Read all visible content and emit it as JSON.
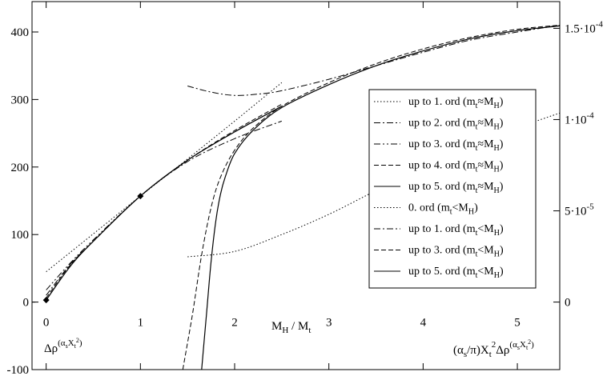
{
  "chart_data": {
    "type": "line",
    "x_axis": {
      "label_main": "M",
      "label_sub": "H",
      "label_rest": " / M",
      "label_sub2": "t",
      "range": [
        -0.15,
        5.45
      ],
      "ticks": [
        0,
        1,
        2,
        3,
        4,
        5
      ],
      "tick_labels": [
        "0",
        "1",
        "2",
        "3",
        "4",
        "5"
      ]
    },
    "y_left": {
      "label_main": "Δρ",
      "label_sup": "(α",
      "label_sup_sub": "s",
      "label_sup_rest": "X",
      "label_sup_sub2": "t",
      "label_sup_sup": "2",
      "label_sup_close": ")",
      "range": [
        -100,
        445
      ],
      "ticks": [
        -100,
        0,
        100,
        200,
        300,
        400
      ],
      "tick_labels": [
        "-100",
        "0",
        "100",
        "200",
        "300",
        "400"
      ]
    },
    "y_right": {
      "label": "(α_s/π)X_t^2 Δρ^(α_s X_t^2)",
      "label_parts": [
        "(α",
        "s",
        "/π)X",
        "t",
        "2",
        "Δρ",
        "(α",
        "s",
        "X",
        "t",
        "2",
        ")"
      ],
      "scale_note": "right axis value = left value × 3.7e-7 (approx)",
      "ticks_left_units": [
        0,
        135.1,
        270.3,
        405.4
      ],
      "tick_labels": [
        "0",
        "5·10",
        "1·10",
        "1.5·10"
      ],
      "tick_exponents": [
        "",
        "-5",
        "-4",
        "-4"
      ]
    },
    "markers": [
      {
        "x": 0,
        "y": 3
      },
      {
        "x": 1,
        "y": 157
      }
    ],
    "series": [
      {
        "name_main": "up to 1. ord (m",
        "name_sub": "t",
        "name_rel": "≈M",
        "name_sub2": "H",
        "name_close": ")",
        "style": "dotted",
        "x": [
          0,
          0.5,
          1,
          1.5,
          2,
          2.5
        ],
        "y": [
          45,
          101,
          157,
          212,
          268,
          325
        ]
      },
      {
        "name_main": "up to 2. ord (m",
        "name_sub": "t",
        "name_rel": "≈M",
        "name_sub2": "H",
        "name_close": ")",
        "style": "dashdot",
        "x": [
          0,
          0.25,
          0.5,
          1,
          1.5,
          2,
          2.5
        ],
        "y": [
          10,
          55,
          90,
          157,
          208,
          242,
          268
        ]
      },
      {
        "name_main": "up to 3. ord (m",
        "name_sub": "t",
        "name_rel": "≈M",
        "name_sub2": "H",
        "name_close": ")",
        "style": "dashdotdot",
        "x": [
          0,
          0.25,
          0.5,
          1,
          1.5,
          2,
          2.5
        ],
        "y": [
          18,
          57,
          92,
          157,
          210,
          252,
          290
        ]
      },
      {
        "name_main": "up to 4. ord (m",
        "name_sub": "t",
        "name_rel": "≈M",
        "name_sub2": "H",
        "name_close": ")",
        "style": "dashed",
        "x": [
          0,
          0.25,
          0.5,
          1,
          1.5,
          2,
          2.5
        ],
        "y": [
          6,
          54,
          90,
          157,
          210,
          254,
          293
        ]
      },
      {
        "name_main": "up to 5. ord (m",
        "name_sub": "t",
        "name_rel": "≈M",
        "name_sub2": "H",
        "name_close": ")",
        "style": "solid",
        "x": [
          0,
          0.25,
          0.5,
          1,
          1.5,
          2,
          2.5
        ],
        "y": [
          3,
          52,
          90,
          157,
          210,
          252,
          290
        ]
      },
      {
        "name_main": "0. ord (m",
        "name_sub": "t",
        "name_rel": "<M",
        "name_sub2": "H",
        "name_close": ")",
        "style": "dotted",
        "x": [
          1.5,
          2,
          2.5,
          3,
          3.5,
          4,
          4.5,
          5,
          5.45
        ],
        "y": [
          67,
          75,
          100,
          130,
          165,
          198,
          230,
          258,
          280
        ]
      },
      {
        "name_main": "up to 1. ord (m",
        "name_sub": "t",
        "name_rel": "<M",
        "name_sub2": "H",
        "name_close": ")",
        "style": "dashdot",
        "x": [
          1.5,
          1.75,
          2,
          2.25,
          2.5,
          3,
          3.5,
          4,
          4.5,
          5,
          5.45
        ],
        "y": [
          320,
          311,
          306,
          308,
          313,
          330,
          350,
          370,
          388,
          400,
          410
        ]
      },
      {
        "name_main": "up to 3. ord (m",
        "name_sub": "t",
        "name_rel": "<M",
        "name_sub2": "H",
        "name_close": ")",
        "style": "dashed",
        "x": [
          1.45,
          1.55,
          1.65,
          1.75,
          1.85,
          2,
          2.2,
          2.5,
          3,
          3.5,
          4,
          4.5,
          5,
          5.45
        ],
        "y": [
          -100,
          -20,
          70,
          140,
          185,
          225,
          258,
          290,
          325,
          353,
          375,
          392,
          404,
          410
        ]
      },
      {
        "name_main": "up to 5. ord (m",
        "name_sub": "t",
        "name_rel": "<M",
        "name_sub2": "H",
        "name_close": ")",
        "style": "solid",
        "x": [
          1.65,
          1.7,
          1.75,
          1.8,
          1.85,
          1.9,
          2,
          2.2,
          2.5,
          3,
          3.5,
          4,
          4.5,
          5,
          5.45
        ],
        "y": [
          -100,
          -20,
          60,
          120,
          160,
          185,
          220,
          255,
          288,
          322,
          350,
          372,
          390,
          402,
          409
        ]
      }
    ]
  }
}
